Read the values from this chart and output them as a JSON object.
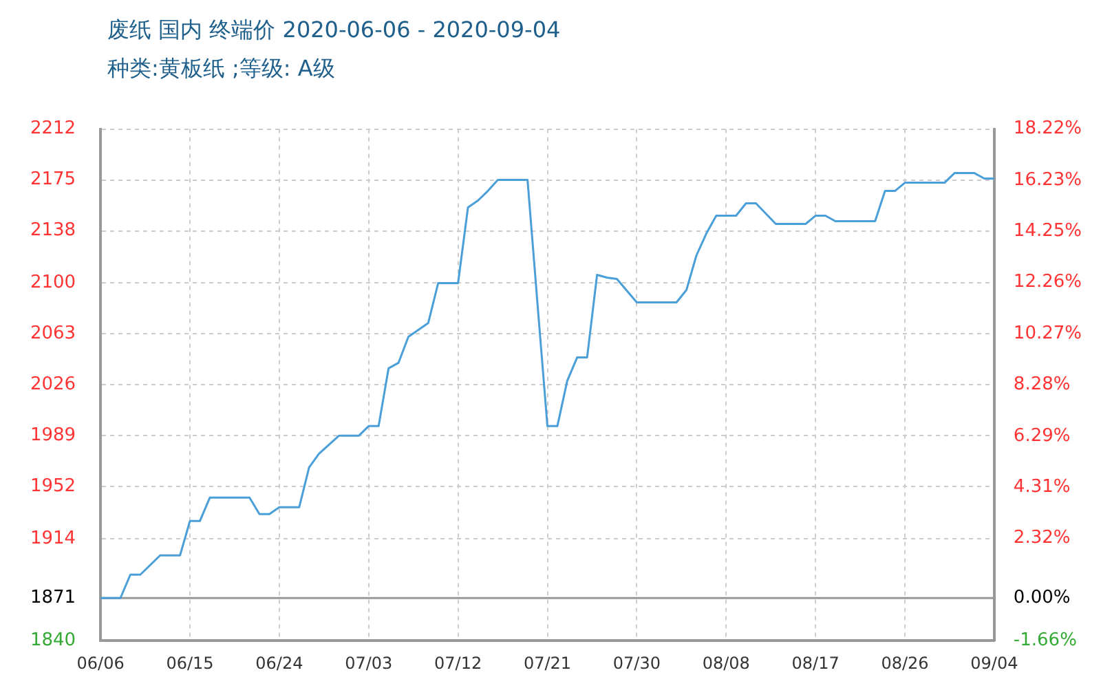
{
  "chart_data": {
    "type": "line",
    "title": "废纸 国内 终端价 2020-06-06 - 2020-09-04",
    "subtitle": "种类:黄板纸 ;等级: A级",
    "x": [
      "2020-06-06",
      "2020-06-08",
      "2020-06-09",
      "2020-06-10",
      "2020-06-12",
      "2020-06-14",
      "2020-06-15",
      "2020-06-16",
      "2020-06-17",
      "2020-06-21",
      "2020-06-22",
      "2020-06-23",
      "2020-06-24",
      "2020-06-26",
      "2020-06-27",
      "2020-06-28",
      "2020-06-30",
      "2020-07-02",
      "2020-07-03",
      "2020-07-04",
      "2020-07-05",
      "2020-07-06",
      "2020-07-07",
      "2020-07-09",
      "2020-07-10",
      "2020-07-12",
      "2020-07-13",
      "2020-07-14",
      "2020-07-15",
      "2020-07-16",
      "2020-07-19",
      "2020-07-20",
      "2020-07-21",
      "2020-07-22",
      "2020-07-23",
      "2020-07-24",
      "2020-07-25",
      "2020-07-26",
      "2020-07-27",
      "2020-07-28",
      "2020-07-30",
      "2020-08-03",
      "2020-08-04",
      "2020-08-05",
      "2020-08-06",
      "2020-08-07",
      "2020-08-09",
      "2020-08-10",
      "2020-08-11",
      "2020-08-13",
      "2020-08-16",
      "2020-08-17",
      "2020-08-18",
      "2020-08-19",
      "2020-08-23",
      "2020-08-24",
      "2020-08-25",
      "2020-08-26",
      "2020-08-30",
      "2020-08-31",
      "2020-09-02",
      "2020-09-03",
      "2020-09-04"
    ],
    "series": [
      {
        "color": "#4a9fd8",
        "values": [
          1871,
          1871,
          1888,
          1888,
          1902,
          1902,
          1927,
          1927,
          1944,
          1944,
          1932,
          1932,
          1937,
          1937,
          1966,
          1976,
          1989,
          1989,
          1996,
          1996,
          2038,
          2042,
          2061,
          2071,
          2100,
          2100,
          2155,
          2160,
          2167,
          2175,
          2175,
          2085,
          1996,
          1996,
          2029,
          2046,
          2046,
          2106,
          2104,
          2103,
          2086,
          2086,
          2095,
          2120,
          2136,
          2149,
          2149,
          2158,
          2158,
          2143,
          2143,
          2149,
          2149,
          2145,
          2145,
          2167,
          2167,
          2173,
          2173,
          2180,
          2180,
          2176,
          2176
        ]
      }
    ],
    "xlim": [
      "2020-06-06",
      "2020-09-04"
    ],
    "xticks": [
      {
        "value": "2020-06-06",
        "label": "06/06"
      },
      {
        "value": "2020-06-15",
        "label": "06/15"
      },
      {
        "value": "2020-06-24",
        "label": "06/24"
      },
      {
        "value": "2020-07-03",
        "label": "07/03"
      },
      {
        "value": "2020-07-12",
        "label": "07/12"
      },
      {
        "value": "2020-07-21",
        "label": "07/21"
      },
      {
        "value": "2020-07-30",
        "label": "07/30"
      },
      {
        "value": "2020-08-08",
        "label": "08/08"
      },
      {
        "value": "2020-08-17",
        "label": "08/17"
      },
      {
        "value": "2020-08-26",
        "label": "08/26"
      },
      {
        "value": "2020-09-04",
        "label": "09/04"
      }
    ],
    "ylim": [
      1840,
      2212
    ],
    "yticks": [
      1840,
      1871,
      1914,
      1952,
      1989,
      2026,
      2063,
      2100,
      2138,
      2175,
      2212
    ],
    "y2lim": [
      -1.66,
      18.22
    ],
    "y2ticks": [
      {
        "value": -1.66,
        "label": "-1.66%"
      },
      {
        "value": 0,
        "label": "0.00%"
      },
      {
        "value": 2.32,
        "label": "2.32%"
      },
      {
        "value": 4.31,
        "label": "4.31%"
      },
      {
        "value": 6.29,
        "label": "6.29%"
      },
      {
        "value": 8.28,
        "label": "8.28%"
      },
      {
        "value": 10.27,
        "label": "10.27%"
      },
      {
        "value": 12.26,
        "label": "12.26%"
      },
      {
        "value": 14.25,
        "label": "14.25%"
      },
      {
        "value": 16.23,
        "label": "16.23%"
      },
      {
        "value": 18.22,
        "label": "18.22%"
      }
    ],
    "ref_lines": [
      {
        "axis": "y",
        "value": 1871,
        "color": "#999999"
      }
    ],
    "grid": true,
    "legend": false,
    "marker": "none",
    "line_style": "solid"
  }
}
